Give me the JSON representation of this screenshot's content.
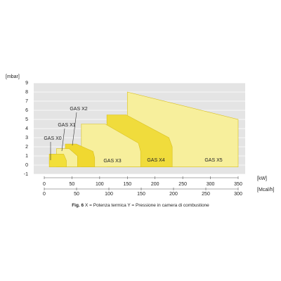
{
  "chart_data": {
    "type": "area",
    "y_label": "[mbar]",
    "x_label": "[kW]",
    "x2_label": "[Mcal/h]",
    "caption_prefix": "Fig. 6",
    "caption": "X = Potenza termica Y = Pressione in camera di combustione",
    "xlim": [
      0,
      350
    ],
    "xticks": [
      0,
      50,
      100,
      150,
      200,
      250,
      300,
      350
    ],
    "x2lim": [
      0,
      300
    ],
    "x2ticks": [
      0,
      50,
      100,
      150,
      200,
      250,
      300
    ],
    "ylim": [
      -1,
      9
    ],
    "yticks": [
      -1,
      0,
      1,
      2,
      3,
      4,
      5,
      6,
      7,
      8,
      9
    ],
    "grid": true,
    "series": [
      {
        "name": "GAS X0",
        "color": "#f2df3a",
        "x": [
          9,
          9,
          35,
          40,
          40
        ],
        "values": [
          -0.2,
          1.2,
          1.2,
          0.5,
          -0.2
        ]
      },
      {
        "name": "GAS X1",
        "color": "#f7ef9c",
        "x": [
          22,
          22,
          45,
          60,
          60
        ],
        "values": [
          -0.2,
          1.8,
          1.8,
          1,
          -0.2
        ]
      },
      {
        "name": "GAS X2",
        "color": "#f0d830",
        "x": [
          38,
          38,
          58,
          88,
          91,
          91
        ],
        "values": [
          -0.2,
          2.3,
          2.3,
          1.5,
          0.8,
          -0.2
        ]
      },
      {
        "name": "GAS X3",
        "color": "#f7ef9c",
        "x": [
          67,
          67,
          110,
          170,
          174,
          174
        ],
        "values": [
          -0.2,
          4.5,
          4.5,
          2.4,
          1.5,
          -0.2
        ]
      },
      {
        "name": "GAS X4",
        "color": "#f0dc3c",
        "x": [
          113,
          113,
          148,
          225,
          231,
          231
        ],
        "values": [
          -0.2,
          5.5,
          5.5,
          3,
          2,
          -0.2
        ]
      },
      {
        "name": "GAS X5",
        "color": "#f7ef9c",
        "x": [
          150,
          150,
          350,
          350
        ],
        "values": [
          -0.2,
          8,
          5,
          -0.2
        ]
      }
    ]
  }
}
